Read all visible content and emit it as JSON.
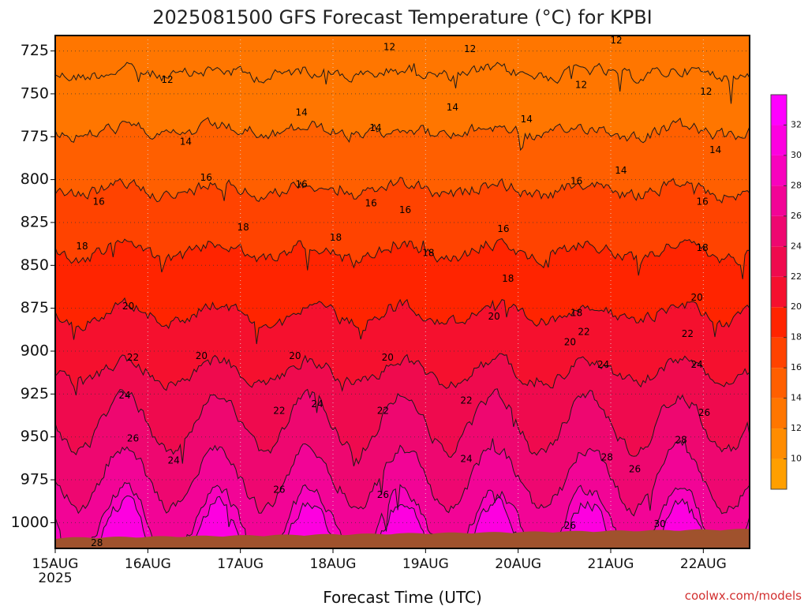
{
  "chart_data": {
    "type": "heatmap",
    "title": "2025081500 GFS Forecast Temperature (°C) for KPBI",
    "xlabel": "Forecast Time (UTC)",
    "ylabel": "",
    "credit": "coolwx.com/models",
    "x_tick_labels": [
      "15AUG",
      "16AUG",
      "17AUG",
      "18AUG",
      "19AUG",
      "20AUG",
      "21AUG",
      "22AUG"
    ],
    "x_year_label": "2025",
    "y_scale": "linear",
    "y_inverted": true,
    "y_ticks": [
      725,
      750,
      775,
      800,
      825,
      850,
      875,
      900,
      925,
      950,
      975,
      1000
    ],
    "y_range_hPa": [
      1015,
      716
    ],
    "x_range_days": [
      0,
      7.5
    ],
    "colorbar": {
      "ticks": [
        10,
        12,
        14,
        16,
        18,
        20,
        22,
        24,
        26,
        28,
        30,
        32
      ],
      "range": [
        8,
        34
      ],
      "bands": [
        {
          "from": 8,
          "to": 10,
          "color": "#ff9f00"
        },
        {
          "from": 10,
          "to": 12,
          "color": "#ff8c00"
        },
        {
          "from": 12,
          "to": 14,
          "color": "#ff7600"
        },
        {
          "from": 14,
          "to": 16,
          "color": "#ff5f00"
        },
        {
          "from": 16,
          "to": 18,
          "color": "#ff4300"
        },
        {
          "from": 18,
          "to": 20,
          "color": "#ff2400"
        },
        {
          "from": 20,
          "to": 22,
          "color": "#f5102e"
        },
        {
          "from": 22,
          "to": 24,
          "color": "#ef0a4e"
        },
        {
          "from": 24,
          "to": 26,
          "color": "#ee0770"
        },
        {
          "from": 26,
          "to": 28,
          "color": "#f20496"
        },
        {
          "from": 28,
          "to": 30,
          "color": "#f802bd"
        },
        {
          "from": 30,
          "to": 32,
          "color": "#fd00e0"
        },
        {
          "from": 32,
          "to": 34,
          "color": "#ff00ff"
        }
      ]
    },
    "isotherm_levels": [
      12,
      14,
      16,
      18,
      20,
      22,
      24,
      26,
      28,
      30
    ],
    "isotherm_mean_pressure_hPa": [
      {
        "temp": 12,
        "pressure": 738
      },
      {
        "temp": 14,
        "pressure": 772
      },
      {
        "temp": 16,
        "pressure": 806
      },
      {
        "temp": 18,
        "pressure": 842
      },
      {
        "temp": 20,
        "pressure": 878
      },
      {
        "temp": 22,
        "pressure": 912
      },
      {
        "temp": 24,
        "pressure": 942
      },
      {
        "temp": 26,
        "pressure": 974
      },
      {
        "temp": 28,
        "pressure": 1000
      },
      {
        "temp": 30,
        "pressure": 1010
      }
    ],
    "contour_labels": [
      {
        "text": "12",
        "day": 1.21,
        "p": 742
      },
      {
        "text": "12",
        "day": 3.61,
        "p": 723
      },
      {
        "text": "12",
        "day": 4.48,
        "p": 724
      },
      {
        "text": "12",
        "day": 5.68,
        "p": 745
      },
      {
        "text": "12",
        "day": 6.06,
        "p": 719
      },
      {
        "text": "12",
        "day": 7.03,
        "p": 749
      },
      {
        "text": "14",
        "day": 1.41,
        "p": 778
      },
      {
        "text": "14",
        "day": 2.66,
        "p": 761
      },
      {
        "text": "14",
        "day": 3.46,
        "p": 770
      },
      {
        "text": "14",
        "day": 4.29,
        "p": 758
      },
      {
        "text": "14",
        "day": 5.09,
        "p": 765
      },
      {
        "text": "14",
        "day": 6.11,
        "p": 795
      },
      {
        "text": "14",
        "day": 7.13,
        "p": 783
      },
      {
        "text": "16",
        "day": 0.47,
        "p": 813
      },
      {
        "text": "16",
        "day": 1.63,
        "p": 799
      },
      {
        "text": "16",
        "day": 2.66,
        "p": 803
      },
      {
        "text": "16",
        "day": 3.41,
        "p": 814
      },
      {
        "text": "16",
        "day": 3.78,
        "p": 818
      },
      {
        "text": "16",
        "day": 4.84,
        "p": 829
      },
      {
        "text": "16",
        "day": 5.63,
        "p": 801
      },
      {
        "text": "16",
        "day": 6.99,
        "p": 813
      },
      {
        "text": "18",
        "day": 0.29,
        "p": 839
      },
      {
        "text": "18",
        "day": 2.03,
        "p": 828
      },
      {
        "text": "18",
        "day": 3.03,
        "p": 834
      },
      {
        "text": "18",
        "day": 4.03,
        "p": 843
      },
      {
        "text": "18",
        "day": 4.89,
        "p": 858
      },
      {
        "text": "18",
        "day": 5.63,
        "p": 878
      },
      {
        "text": "18",
        "day": 6.99,
        "p": 840
      },
      {
        "text": "20",
        "day": 0.79,
        "p": 874
      },
      {
        "text": "20",
        "day": 1.58,
        "p": 903
      },
      {
        "text": "20",
        "day": 2.59,
        "p": 903
      },
      {
        "text": "20",
        "day": 3.59,
        "p": 904
      },
      {
        "text": "20",
        "day": 4.74,
        "p": 880
      },
      {
        "text": "20",
        "day": 5.56,
        "p": 895
      },
      {
        "text": "20",
        "day": 6.93,
        "p": 869
      },
      {
        "text": "22",
        "day": 0.84,
        "p": 904
      },
      {
        "text": "22",
        "day": 2.42,
        "p": 935
      },
      {
        "text": "22",
        "day": 3.54,
        "p": 935
      },
      {
        "text": "22",
        "day": 4.44,
        "p": 929
      },
      {
        "text": "22",
        "day": 5.71,
        "p": 889
      },
      {
        "text": "22",
        "day": 6.83,
        "p": 890
      },
      {
        "text": "24",
        "day": 0.75,
        "p": 926
      },
      {
        "text": "24",
        "day": 1.28,
        "p": 964
      },
      {
        "text": "24",
        "day": 2.83,
        "p": 931
      },
      {
        "text": "24",
        "day": 4.44,
        "p": 963
      },
      {
        "text": "24",
        "day": 5.92,
        "p": 908
      },
      {
        "text": "24",
        "day": 6.93,
        "p": 908
      },
      {
        "text": "26",
        "day": 0.84,
        "p": 951
      },
      {
        "text": "26",
        "day": 2.42,
        "p": 981
      },
      {
        "text": "26",
        "day": 3.54,
        "p": 984
      },
      {
        "text": "26",
        "day": 5.56,
        "p": 1002
      },
      {
        "text": "26",
        "day": 6.26,
        "p": 969
      },
      {
        "text": "26",
        "day": 7.01,
        "p": 936
      },
      {
        "text": "28",
        "day": 0.45,
        "p": 1012
      },
      {
        "text": "28",
        "day": 5.96,
        "p": 962
      },
      {
        "text": "28",
        "day": 6.76,
        "p": 952
      },
      {
        "text": "30",
        "day": 6.53,
        "p": 1001
      }
    ]
  }
}
